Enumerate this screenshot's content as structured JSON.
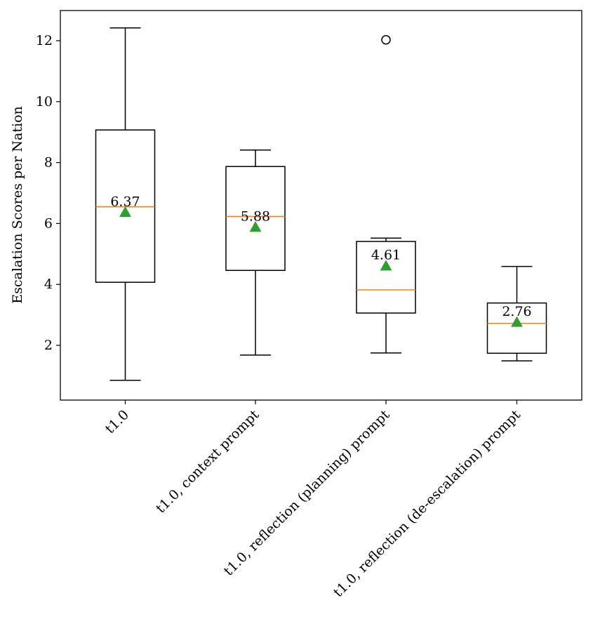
{
  "chart_data": {
    "type": "boxplot",
    "title": "",
    "xlabel": "",
    "ylabel": "Escalation Scores per Nation",
    "ylim": [
      0.25,
      13.0
    ],
    "yticks": [
      2,
      4,
      6,
      8,
      10,
      12
    ],
    "ytick_labels": [
      "2",
      "4",
      "6",
      "8",
      "10",
      "12"
    ],
    "categories": [
      "t1.0",
      "t1.0, context prompt",
      "t1.0, reflection (planning) prompt",
      "t1.0, reflection (de-escalation) prompt"
    ],
    "boxes": [
      {
        "whisker_low": 0.85,
        "q1": 4.07,
        "median": 6.55,
        "q3": 9.07,
        "whisker_high": 12.42,
        "mean": 6.37,
        "mean_label": "6.37",
        "outliers": []
      },
      {
        "whisker_low": 1.68,
        "q1": 4.46,
        "median": 6.23,
        "q3": 7.87,
        "whisker_high": 8.41,
        "mean": 5.88,
        "mean_label": "5.88",
        "outliers": []
      },
      {
        "whisker_low": 1.75,
        "q1": 3.06,
        "median": 3.82,
        "q3": 5.41,
        "whisker_high": 5.52,
        "mean": 4.61,
        "mean_label": "4.61",
        "outliers": [
          12.03
        ]
      },
      {
        "whisker_low": 1.49,
        "q1": 1.74,
        "median": 2.72,
        "q3": 3.39,
        "whisker_high": 4.59,
        "mean": 2.76,
        "mean_label": "2.76",
        "outliers": []
      }
    ],
    "colors": {
      "box": "#000000",
      "median": "#ff7f0e",
      "mean_marker": "#2ca02c",
      "outlier": "#000000"
    }
  }
}
